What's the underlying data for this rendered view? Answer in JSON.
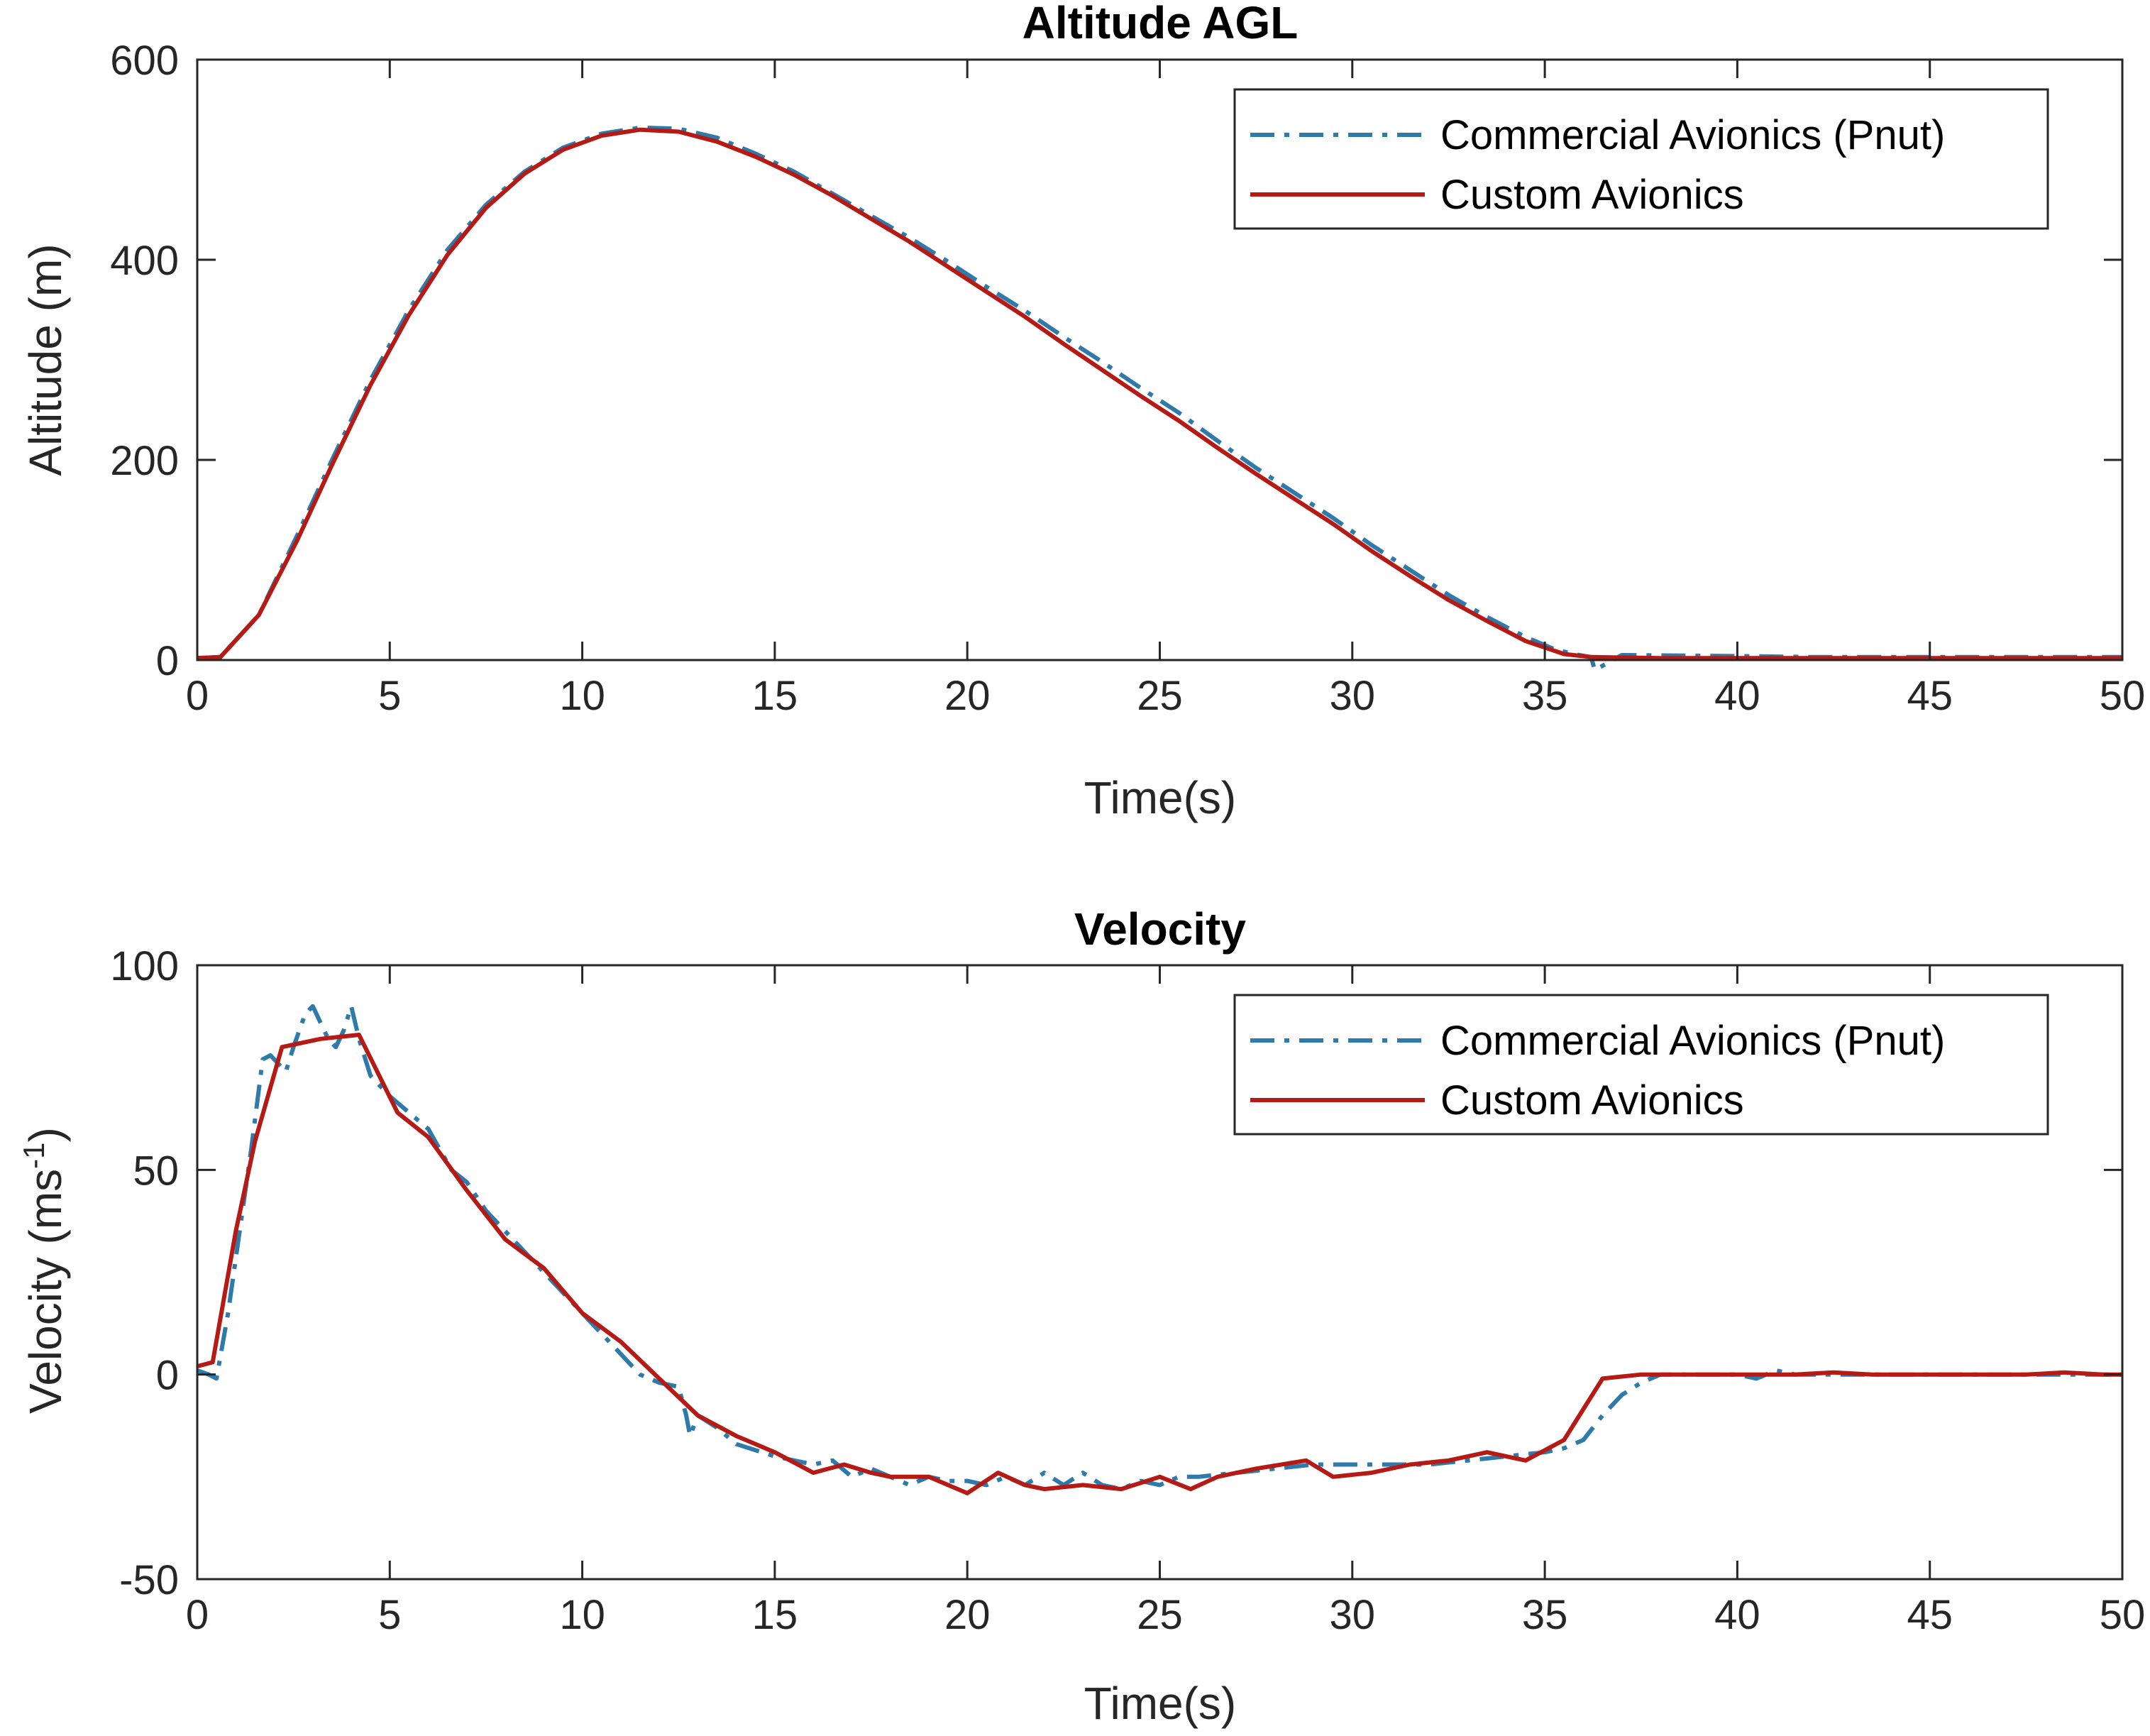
{
  "colors": {
    "commercial": "#2E7AAB",
    "custom": "#B51A14",
    "axes": "#262626"
  },
  "chart_data": [
    {
      "type": "line",
      "title": "Altitude AGL",
      "xlabel": "Time(s)",
      "ylabel": "Altitude (m)",
      "xlim": [
        0,
        50
      ],
      "ylim": [
        0,
        600
      ],
      "xticks": [
        0,
        5,
        10,
        15,
        20,
        25,
        30,
        35,
        40,
        45,
        50
      ],
      "yticks": [
        0,
        200,
        400,
        600
      ],
      "legend": "top-right",
      "grid": false,
      "series": [
        {
          "name": "Commercial Avionics (Pnut)",
          "style": "dash-dot",
          "x": [
            0,
            0.6,
            1.6,
            2.6,
            3.5,
            4.5,
            5.5,
            6.5,
            7.5,
            8.5,
            9.5,
            10.5,
            11.5,
            12.5,
            13.5,
            14.5,
            15.5,
            16.5,
            17.5,
            18.5,
            19.5,
            20.5,
            21.5,
            22.5,
            23.5,
            24.5,
            25.5,
            26.5,
            27.5,
            28.5,
            29.5,
            30.5,
            31.5,
            32.5,
            33.5,
            34.5,
            35.3,
            35.9,
            36.2,
            36.3,
            37,
            40,
            42,
            50
          ],
          "y": [
            2,
            3,
            45,
            125,
            200,
            280,
            350,
            410,
            455,
            488,
            512,
            526,
            532,
            531,
            522,
            506,
            488,
            466,
            444,
            422,
            398,
            373,
            349,
            323,
            298,
            272,
            247,
            219,
            192,
            167,
            142,
            115,
            90,
            65,
            43,
            23,
            10,
            5,
            3,
            -10,
            5,
            4,
            3,
            3
          ]
        },
        {
          "name": "Custom Avionics",
          "style": "solid",
          "x": [
            0,
            0.6,
            1.6,
            2.6,
            3.5,
            4.5,
            5.5,
            6.5,
            7.5,
            8.5,
            9.5,
            10.5,
            11.5,
            12.5,
            13.5,
            14.5,
            15.5,
            16.5,
            17.5,
            18.5,
            19.5,
            20.5,
            21.5,
            22.5,
            23.5,
            24.5,
            25.5,
            26.5,
            27.5,
            28.5,
            29.5,
            30.5,
            31.5,
            32.5,
            33.5,
            34.5,
            35.5,
            36.2,
            38,
            40,
            42,
            45,
            50
          ],
          "y": [
            2,
            3,
            45,
            120,
            195,
            275,
            345,
            405,
            452,
            486,
            510,
            524,
            530,
            528,
            518,
            503,
            485,
            464,
            441,
            418,
            393,
            368,
            343,
            316,
            290,
            264,
            239,
            212,
            186,
            161,
            136,
            109,
            84,
            60,
            39,
            19,
            6,
            3,
            2,
            2,
            2,
            2,
            2
          ]
        }
      ]
    },
    {
      "type": "line",
      "title": "Velocity",
      "xlabel": "Time(s)",
      "ylabel": "Velocity (ms",
      "ylabel_sup": "-1",
      "ylabel_end": ")",
      "xlim": [
        0,
        50
      ],
      "ylim": [
        -50,
        100
      ],
      "xticks": [
        0,
        5,
        10,
        15,
        20,
        25,
        30,
        35,
        40,
        45,
        50
      ],
      "yticks": [
        -50,
        0,
        50,
        100
      ],
      "legend": "top-right",
      "grid": false,
      "series": [
        {
          "name": "Commercial Avionics (Pnut)",
          "style": "dash-dot",
          "x": [
            0,
            0.3,
            0.5,
            0.8,
            1.1,
            1.4,
            1.7,
            1.9,
            2.1,
            2.3,
            2.5,
            2.8,
            3.0,
            3.2,
            3.4,
            3.6,
            3.8,
            4.0,
            4.2,
            4.5,
            5.0,
            5.5,
            6.0,
            6.3,
            6.6,
            7.0,
            7.5,
            8.0,
            8.5,
            9.0,
            9.5,
            10.0,
            10.5,
            11.0,
            11.5,
            12.0,
            12.5,
            12.7,
            12.8,
            13.0,
            13.5,
            14.0,
            15.0,
            16.0,
            16.5,
            17.0,
            17.5,
            18.0,
            18.5,
            19.0,
            19.5,
            20.0,
            20.5,
            21.0,
            21.5,
            22.0,
            22.5,
            23.0,
            23.5,
            24.0,
            24.5,
            25.0,
            25.5,
            26.0,
            27.0,
            28.0,
            29.0,
            30.0,
            31.0,
            32.0,
            33.0,
            34.0,
            35.0,
            35.5,
            36.0,
            36.5,
            37.0,
            37.5,
            38.0,
            39.0,
            40.0,
            40.5,
            41.0,
            41.5,
            42.0,
            45.0,
            50.0
          ],
          "y": [
            1,
            0,
            -1,
            15,
            35,
            55,
            77,
            78,
            76,
            74,
            80,
            88,
            90,
            86,
            82,
            80,
            84,
            90,
            82,
            73,
            68,
            64,
            60,
            55,
            50,
            47,
            40,
            35,
            30,
            25,
            20,
            15,
            10,
            5,
            0,
            -2,
            -3,
            -10,
            -15,
            -10,
            -13,
            -17,
            -20,
            -22,
            -21,
            -25,
            -23,
            -25,
            -27,
            -25,
            -26,
            -26,
            -27,
            -25,
            -27,
            -24,
            -27,
            -24,
            -27,
            -28,
            -26,
            -27,
            -25,
            -25,
            -24,
            -23,
            -22,
            -22,
            -22,
            -22,
            -21,
            -20,
            -19,
            -18,
            -16,
            -10,
            -5,
            -2,
            0,
            0,
            0,
            -1,
            1,
            0,
            0,
            0,
            0
          ]
        },
        {
          "name": "Custom Avionics",
          "style": "solid",
          "x": [
            0,
            0.4,
            1.0,
            1.5,
            2.2,
            3.2,
            4.2,
            5.2,
            6.0,
            7.0,
            8.0,
            9.0,
            10.0,
            11.0,
            12.0,
            13.0,
            14.0,
            15.0,
            16.0,
            16.8,
            17.5,
            18.0,
            19.0,
            20.0,
            20.8,
            21.5,
            22.0,
            23.0,
            24.0,
            25.0,
            25.8,
            26.5,
            27.5,
            28.8,
            29.5,
            30.5,
            31.5,
            32.5,
            33.5,
            34.5,
            35.5,
            36.5,
            37.5,
            38.5,
            39.5,
            40.5,
            41.5,
            42.5,
            43.5,
            44.5,
            45.5,
            46.5,
            47.5,
            48.5,
            49.5,
            50.0
          ],
          "y": [
            2,
            3,
            35,
            57,
            80,
            82,
            83,
            64,
            58,
            45,
            33,
            26,
            15,
            8,
            -1,
            -10,
            -15,
            -19,
            -24,
            -22,
            -24,
            -25,
            -25,
            -29,
            -24,
            -27,
            -28,
            -27,
            -28,
            -25,
            -28,
            -25,
            -23,
            -21,
            -25,
            -24,
            -22,
            -21,
            -19,
            -21,
            -16,
            -1,
            0,
            0,
            0,
            0,
            0,
            0.5,
            0,
            0,
            0,
            0,
            0,
            0.5,
            0,
            0
          ]
        }
      ]
    }
  ]
}
